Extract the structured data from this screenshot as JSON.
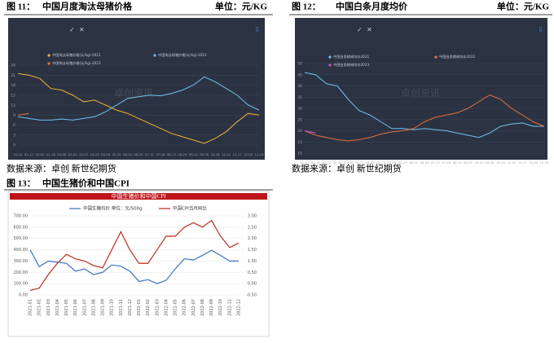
{
  "chart_data": [
    {
      "type": "line",
      "figure": "图 11：",
      "title": "中国月度淘汰母猪价格",
      "unit": "单位：元/KG",
      "source": "数据来源：卓创 新世纪期货",
      "watermark": "卓创资讯",
      "categories": [
        "01-01",
        "01-17",
        "02-02",
        "02-18",
        "03-06",
        "03-22",
        "04-07",
        "04-23",
        "05-09",
        "05-25",
        "06-10",
        "06-26",
        "07-12",
        "07-28",
        "08-13",
        "08-29",
        "09-14",
        "09-30",
        "10-16",
        "11-01",
        "11-17",
        "12-03",
        "12-19"
      ],
      "ylim": [
        0,
        24
      ],
      "yticks": [
        0,
        3,
        6,
        9,
        12,
        15,
        18,
        21,
        24
      ],
      "series": [
        {
          "name": "中国淘汰母猪价格(元/kg)-2021",
          "color": "#f2b233",
          "values": [
            21.5,
            21,
            20,
            17,
            16.5,
            15,
            13,
            13.5,
            12,
            10.5,
            9.5,
            8,
            6.5,
            5,
            3.5,
            2.5,
            1.5,
            0.5,
            2,
            4,
            7,
            9.5,
            9
          ]
        },
        {
          "name": "中国淘汰母猪价格(元/kg)-2022",
          "color": "#6fc3ef",
          "values": [
            8.5,
            8,
            7.5,
            7.5,
            7.8,
            7.5,
            8,
            8.5,
            10,
            12,
            14,
            14.5,
            15,
            14.8,
            15.5,
            16.5,
            18,
            20.5,
            19,
            17,
            15,
            12,
            10.5
          ]
        },
        {
          "name": "中国淘汰母猪价格(元/kg)-2023",
          "color": "#e8703a",
          "values": [
            9,
            9.5,
            null,
            null,
            null,
            null,
            null,
            null,
            null,
            null,
            null,
            null,
            null,
            null,
            null,
            null,
            null,
            null,
            null,
            null,
            null,
            null,
            null
          ]
        }
      ]
    },
    {
      "type": "line",
      "figure": "图 12：",
      "title": "中国白条月度均价",
      "unit": "单位：元/KG",
      "source": "数据来源：卓创 新世纪期货",
      "watermark": "卓创资讯",
      "categories": [
        "01-01",
        "01-17",
        "02-02",
        "02-18",
        "03-06",
        "03-22",
        "04-07",
        "04-23",
        "05-09",
        "05-25",
        "06-10",
        "06-26",
        "07-12",
        "07-28",
        "08-13",
        "08-29",
        "09-14",
        "09-30",
        "10-16",
        "11-01",
        "11-17",
        "12-03",
        "12-19"
      ],
      "ylim": [
        10,
        50
      ],
      "yticks": [
        10,
        15,
        20,
        25,
        30,
        35,
        40,
        45,
        50
      ],
      "series": [
        {
          "name": "中国白条猪肉均价2021",
          "color": "#6fc3ef",
          "values": [
            46,
            45,
            41,
            40,
            34,
            29,
            27,
            24,
            21,
            21,
            20.5,
            21,
            20.5,
            20,
            19,
            18,
            17,
            19,
            22,
            23,
            23.5,
            22,
            22
          ]
        },
        {
          "name": "中国白条猪肉均价2022",
          "color": "#e8703a",
          "values": [
            20,
            18,
            17,
            16,
            15.5,
            16,
            17,
            18.5,
            19.5,
            20,
            21,
            24,
            26,
            27,
            28,
            30,
            33,
            36,
            34,
            30,
            27,
            24,
            22
          ]
        },
        {
          "name": "中国白条猪肉均价2023",
          "color": "#c05bc8",
          "values": [
            20,
            19,
            null,
            null,
            null,
            null,
            null,
            null,
            null,
            null,
            null,
            null,
            null,
            null,
            null,
            null,
            null,
            null,
            null,
            null,
            null,
            null,
            null
          ]
        }
      ]
    },
    {
      "type": "line",
      "figure": "图 13：",
      "caption": "中国生猪价和中国CPI",
      "title": "中国生猪价和中国CPI",
      "categories": [
        "2021-01",
        "2021-02",
        "2021-03",
        "2021-04",
        "2021-05",
        "2021-06",
        "2021-07",
        "2021-08",
        "2021-09",
        "2021-10",
        "2021-11",
        "2021-12",
        "2022-01",
        "2022-02",
        "2022-03",
        "2022-04",
        "2022-05",
        "2022-06",
        "2022-07",
        "2022-08",
        "2022-09",
        "2022-10",
        "2022-11",
        "2022-12"
      ],
      "ylim": [
        0,
        700
      ],
      "yticks": [
        {
          "value": 0,
          "label": "0.00"
        },
        {
          "value": 100,
          "label": "100.00"
        },
        {
          "value": 200,
          "label": "200.00"
        },
        {
          "value": 300,
          "label": "300.00"
        },
        {
          "value": 400,
          "label": "400.00"
        },
        {
          "value": 500,
          "label": "500.00"
        },
        {
          "value": 600,
          "label": "600.00"
        },
        {
          "value": 700,
          "label": "700.00"
        }
      ],
      "y2lim": [
        -0.5,
        3
      ],
      "y2ticks": [
        {
          "value": -0.5,
          "label": "-0.50"
        },
        {
          "value": 0,
          "label": "0.00"
        },
        {
          "value": 0.5,
          "label": "0.50"
        },
        {
          "value": 1,
          "label": "1.00"
        },
        {
          "value": 1.5,
          "label": "1.50"
        },
        {
          "value": 2,
          "label": "2.00"
        },
        {
          "value": 2.5,
          "label": "2.50"
        },
        {
          "value": 3,
          "label": "3.00"
        }
      ],
      "series": [
        {
          "name": "中国生猪均价 单位：元/500g",
          "color": "#4a7cc4",
          "values": [
            400,
            250,
            300,
            290,
            280,
            210,
            230,
            180,
            200,
            265,
            255,
            210,
            120,
            135,
            100,
            130,
            230,
            320,
            310,
            350,
            395,
            350,
            300,
            300
          ]
        },
        {
          "name": "中国CPI当月同比",
          "color": "#c0392b",
          "axis": "y2",
          "values": [
            -0.3,
            -0.2,
            0.4,
            0.9,
            1.3,
            1.1,
            1.0,
            0.8,
            0.7,
            1.5,
            2.3,
            1.5,
            0.9,
            0.9,
            1.5,
            2.1,
            2.1,
            2.5,
            2.7,
            2.5,
            2.8,
            2.1,
            1.6,
            1.8
          ]
        }
      ]
    }
  ]
}
